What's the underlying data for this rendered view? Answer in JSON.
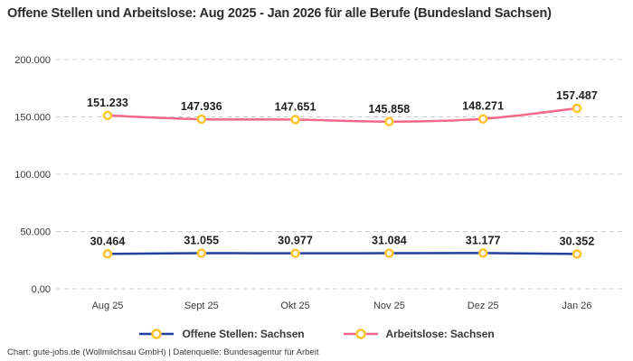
{
  "title": "Offene Stellen und Arbeitslose: Aug 2025 - Jan 2026 für alle Berufe (Bundesland Sachsen)",
  "footer": "Chart: gute-jobs.de (Wollmilchsau GmbH) | Datenquelle: Bundesagentur für Arbeit",
  "colors": {
    "grid": "#cccccc",
    "title_text": "#2d2d2d",
    "tick_text": "#3a3a3a",
    "data_label_text": "#1f1f1f",
    "background": "#ffffff"
  },
  "chart_data": {
    "type": "line",
    "categories": [
      "Aug 25",
      "Sept 25",
      "Okt 25",
      "Nov 25",
      "Dez 25",
      "Jan 26"
    ],
    "series": [
      {
        "name": "Offene Stellen: Sachsen",
        "values": [
          30464,
          31055,
          30977,
          31084,
          31177,
          30352
        ],
        "color": "#21409f"
      },
      {
        "name": "Arbeitslose: Sachsen",
        "values": [
          151233,
          147936,
          147651,
          145858,
          148271,
          157487
        ],
        "color": "#f5688a"
      }
    ],
    "marker": {
      "fill": "#ffffff",
      "stroke": "#fdc330"
    },
    "y_ticks": [
      {
        "value": 0,
        "label": "0,00"
      },
      {
        "value": 50000,
        "label": "50.000"
      },
      {
        "value": 100000,
        "label": "100.000"
      },
      {
        "value": 150000,
        "label": "150.000"
      },
      {
        "value": 200000,
        "label": "200.000"
      }
    ],
    "ylim": [
      0,
      200000
    ],
    "grid": "dashed-horizontal",
    "legend_position": "bottom",
    "number_format": "de-DE"
  }
}
